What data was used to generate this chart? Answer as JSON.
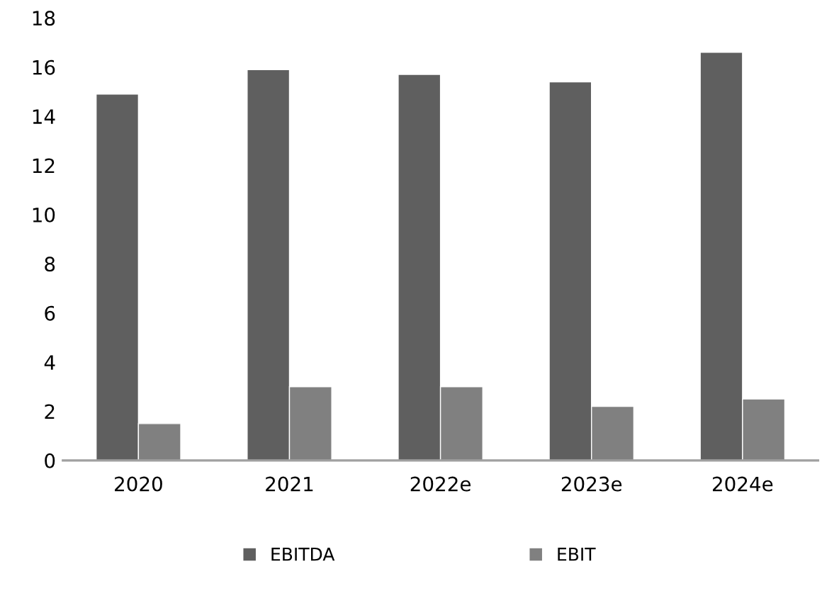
{
  "chart_data": {
    "type": "bar",
    "categories": [
      "2020",
      "2021",
      "2022e",
      "2023e",
      "2024e"
    ],
    "series": [
      {
        "name": "EBITDA",
        "color": "#5f5f5f",
        "values": [
          14.9,
          15.9,
          15.7,
          15.4,
          16.6
        ]
      },
      {
        "name": "EBIT",
        "color": "#808080",
        "values": [
          1.5,
          3.0,
          3.0,
          2.2,
          2.5
        ]
      }
    ],
    "ylim": [
      0,
      18
    ],
    "yticks": [
      0,
      2,
      4,
      6,
      8,
      10,
      12,
      14,
      16,
      18
    ],
    "grid": false,
    "legend": "bottom"
  }
}
